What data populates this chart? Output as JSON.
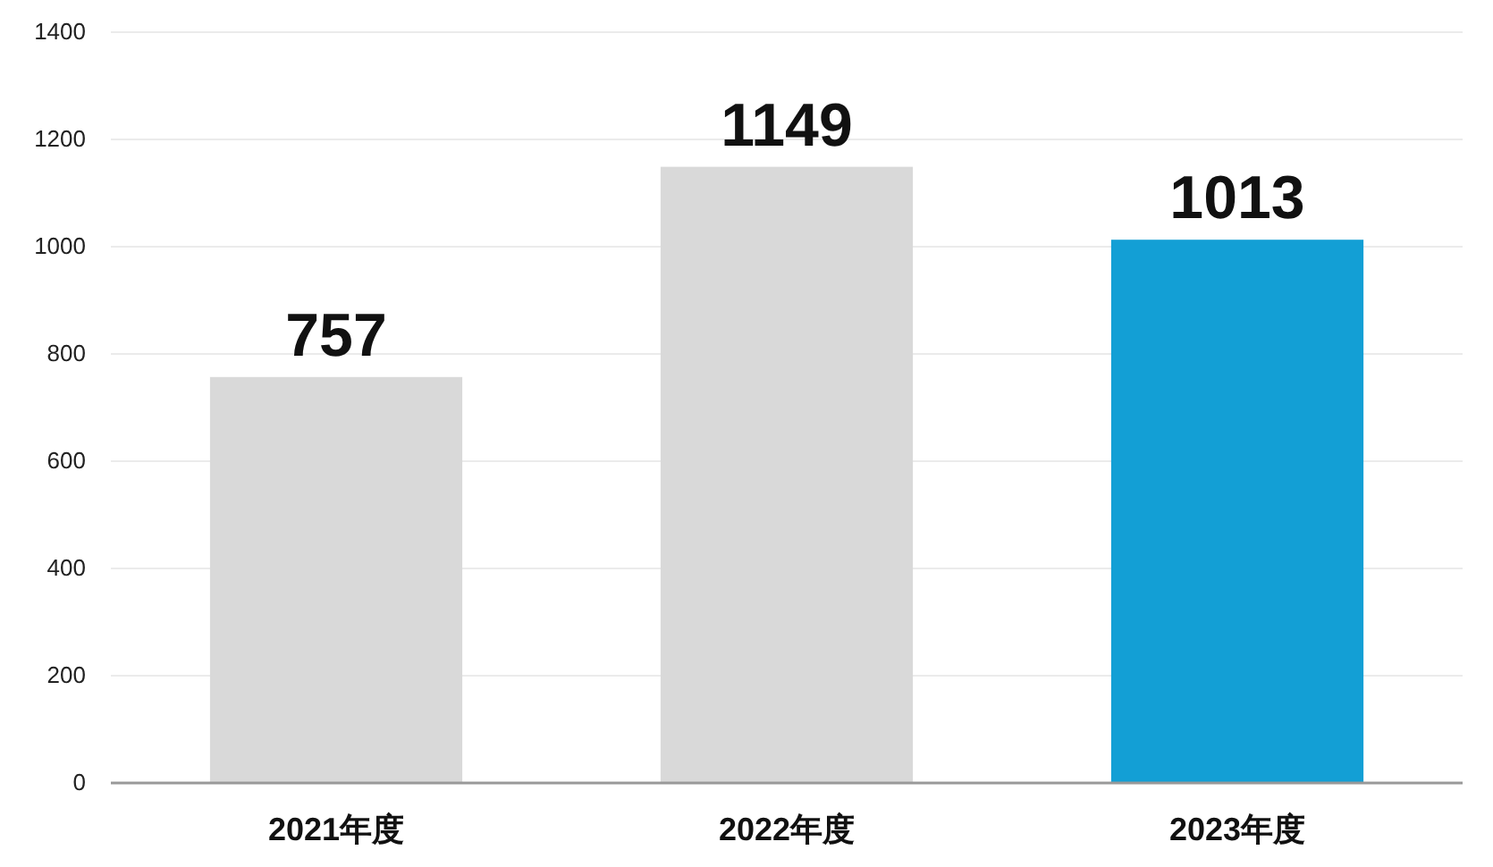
{
  "chart_data": {
    "type": "bar",
    "categories": [
      "2021年度",
      "2022年度",
      "2023年度"
    ],
    "values": [
      757,
      1149,
      1013
    ],
    "colors": [
      "#d9d9d9",
      "#d9d9d9",
      "#139fd5"
    ],
    "ylim": [
      0,
      1400
    ],
    "yticks": [
      0,
      200,
      400,
      600,
      800,
      1000,
      1200,
      1400
    ],
    "grid": "y",
    "data_labels": true
  }
}
